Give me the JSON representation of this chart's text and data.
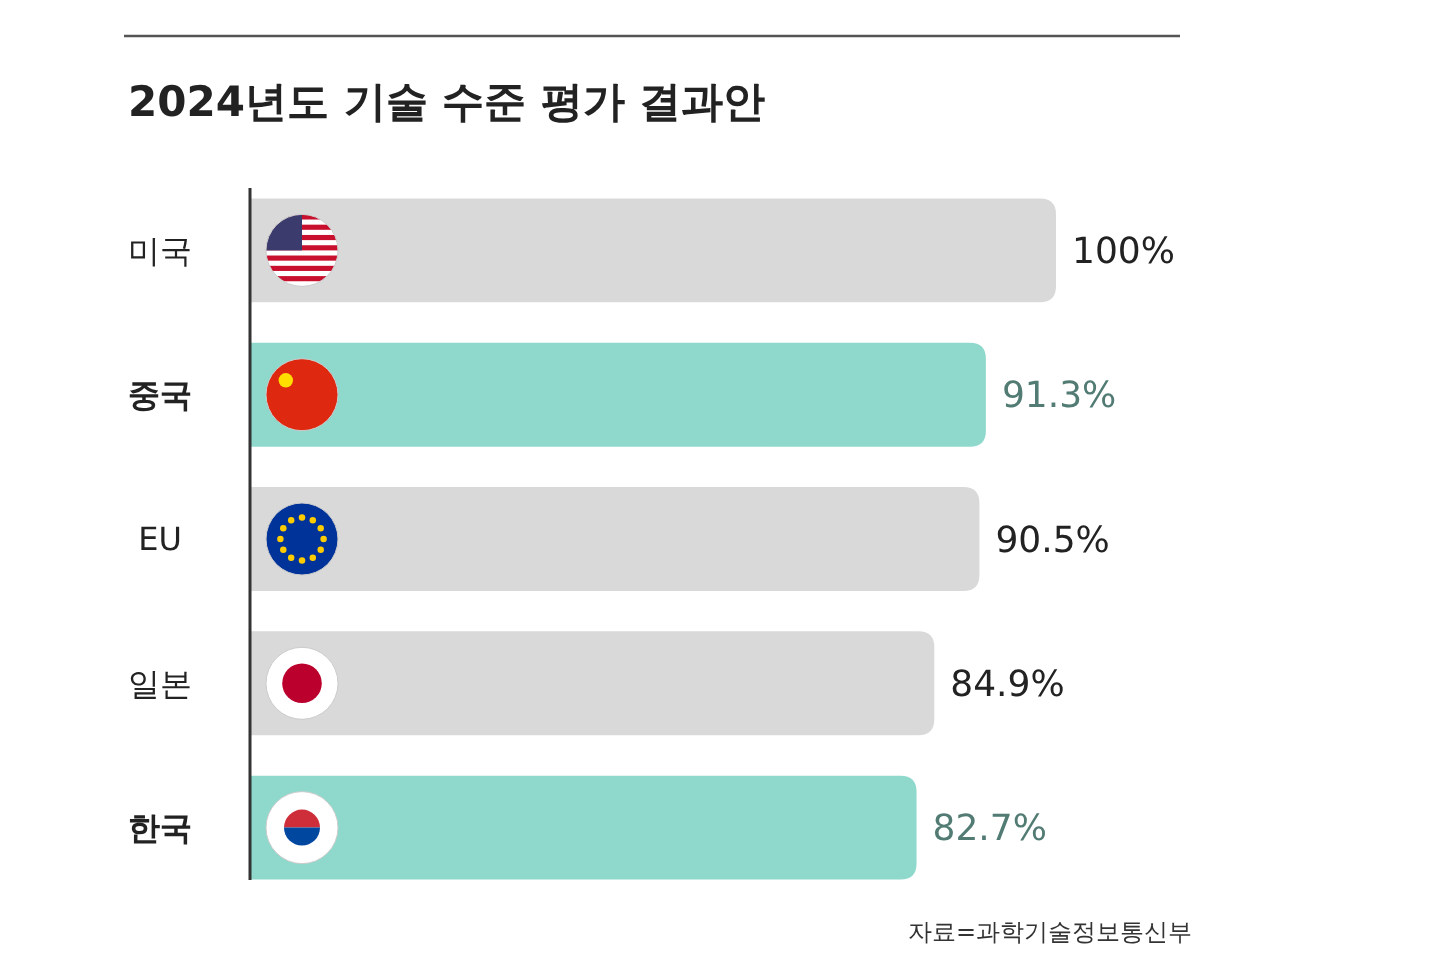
{
  "chart_data": {
    "type": "bar",
    "orientation": "horizontal",
    "title": "2024년도 기술 수준 평가 결과안",
    "categories": [
      "미국",
      "중국",
      "EU",
      "일본",
      "한국"
    ],
    "values": [
      100,
      91.3,
      90.5,
      84.9,
      82.7
    ],
    "colors": [
      "#d9d9d9",
      "#8fd9cc",
      "#d9d9d9",
      "#d9d9d9",
      "#8fd9cc"
    ],
    "value_labels": [
      "100%",
      "91.3%",
      "90.5%",
      "84.9%",
      "82.7%"
    ],
    "xlim": [
      0,
      100
    ],
    "tick_labels": "y",
    "annotations": [
      "자료=과학기술정보통신부"
    ]
  }
}
